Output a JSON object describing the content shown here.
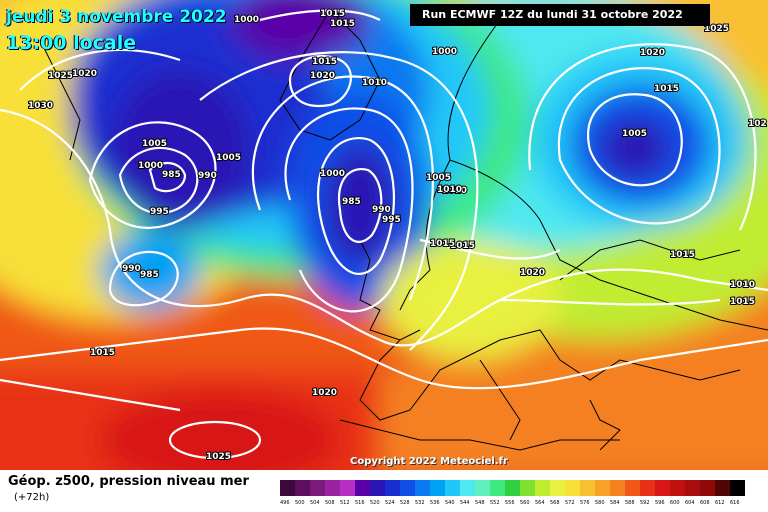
{
  "header": {
    "date_line": "jeudi 3 novembre 2022",
    "time_line": "13:00 locale",
    "run_info": "Run ECMWF 12Z du lundi 31 octobre 2022"
  },
  "footer": {
    "legend_title": "Géop. z500, pression niveau mer",
    "lead_time": "(+72h)",
    "copyright": "Copyright 2022 Meteociel.fr"
  },
  "scale": {
    "values": [
      "496",
      "500",
      "504",
      "508",
      "512",
      "516",
      "520",
      "524",
      "528",
      "532",
      "536",
      "540",
      "544",
      "548",
      "552",
      "556",
      "560",
      "564",
      "568",
      "572",
      "576",
      "580",
      "584",
      "588",
      "592",
      "596",
      "600",
      "604",
      "608",
      "612",
      "616"
    ],
    "colors": [
      "#3b0a3b",
      "#5c0f5c",
      "#7a1a7a",
      "#9a24a0",
      "#b530c0",
      "#5a00a8",
      "#2a14b4",
      "#1a2ed0",
      "#1050e8",
      "#0a78f0",
      "#00a0f4",
      "#20c8f8",
      "#50e8f0",
      "#60f0c0",
      "#40e880",
      "#30d040",
      "#80e030",
      "#c0ec30",
      "#e8f040",
      "#f8e038",
      "#f8c030",
      "#f8a028",
      "#f48020",
      "#f05818",
      "#e83018",
      "#d81818",
      "#c01010",
      "#a80c0c",
      "#900808",
      "#500404",
      "#000000"
    ]
  },
  "pressure_labels": [
    "1000",
    "1015",
    "1015",
    "1015",
    "1020",
    "1025",
    "1020",
    "1030",
    "1010",
    "1000",
    "1005",
    "1000",
    "985",
    "990",
    "1005",
    "995",
    "1000",
    "985",
    "990",
    "995",
    "1005",
    "1010",
    "1015",
    "1020",
    "1005",
    "1015",
    "1020",
    "1025",
    "1010",
    "1015",
    "990",
    "985",
    "1015",
    "1020",
    "1025",
    "1015",
    "1010",
    "1015",
    "102"
  ]
}
